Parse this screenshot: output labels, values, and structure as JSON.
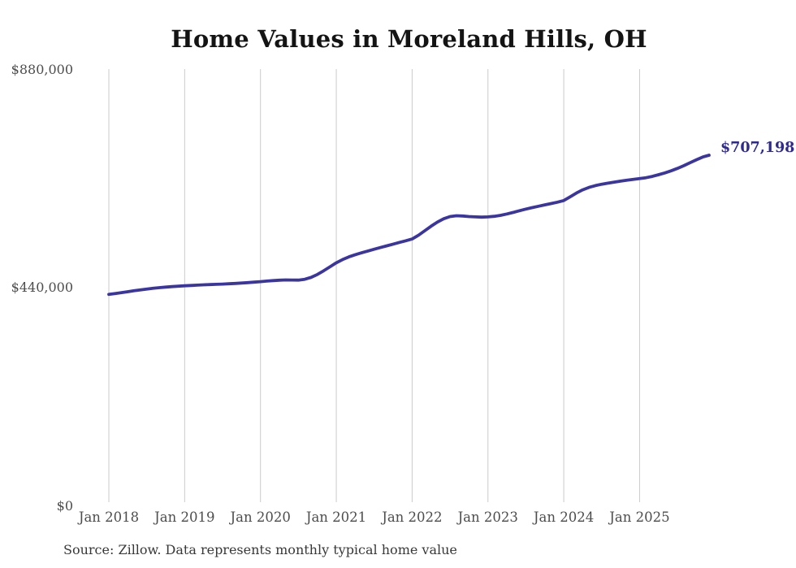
{
  "figure": {
    "source_note": "Source: Zillow. Data represents monthly typical home value"
  },
  "colors": {
    "background": "#ffffff",
    "title": "#141414",
    "axis_label": "#4d4d4d",
    "gridline": "#cbcbcb",
    "line": "#3b35a0",
    "latest_label": "#2f2a8e"
  },
  "chart_data": {
    "type": "line",
    "title": "Home Values in Moreland Hills, OH",
    "xlabel": "",
    "ylabel": "",
    "ylim": [
      0,
      880000
    ],
    "grid": "vertical-only",
    "legend": "none",
    "frequency": "monthly",
    "x_range": [
      "Jan 2018",
      "Dec 2025"
    ],
    "x_ticks": [
      "Jan 2018",
      "Jan 2019",
      "Jan 2020",
      "Jan 2021",
      "Jan 2022",
      "Jan 2023",
      "Jan 2024",
      "Jan 2025"
    ],
    "y_ticks": [
      {
        "label": "$0",
        "value": 0
      },
      {
        "label": "$440,000",
        "value": 440000
      },
      {
        "label": "$880,000",
        "value": 880000
      }
    ],
    "latest_value": 707198,
    "latest_label": "$707,198",
    "series": [
      {
        "name": "Typical home value",
        "color": "#3b35a0",
        "values": [
          427000,
          428600,
          430400,
          432300,
          434200,
          436000,
          437600,
          439100,
          440400,
          441500,
          442500,
          443400,
          444200,
          444900,
          445500,
          446100,
          446600,
          447100,
          447600,
          448200,
          448900,
          449700,
          450600,
          451500,
          452500,
          453600,
          454700,
          455500,
          456000,
          455800,
          455600,
          457200,
          461000,
          467000,
          474500,
          482500,
          490500,
          497000,
          502400,
          506900,
          510700,
          514300,
          517900,
          521300,
          524800,
          528200,
          531600,
          534900,
          538400,
          546000,
          555000,
          564200,
          572500,
          579200,
          583600,
          585300,
          584800,
          583700,
          583000,
          582600,
          583000,
          584200,
          586200,
          588900,
          592000,
          595400,
          598800,
          601700,
          604500,
          607200,
          609800,
          612600,
          616000,
          623500,
          631000,
          637500,
          642500,
          646000,
          648800,
          651000,
          653100,
          655100,
          657000,
          658600,
          660100,
          662000,
          664600,
          667900,
          671600,
          675900,
          680800,
          686200,
          692200,
          698100,
          703700,
          707198
        ]
      }
    ]
  }
}
